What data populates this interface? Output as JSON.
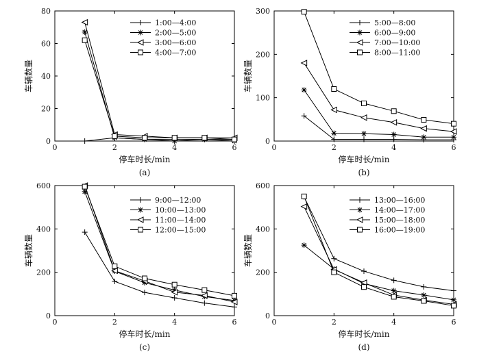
{
  "chart_data": [
    {
      "type": "line",
      "panel_label": "(a)",
      "xlabel": "停车时长/min",
      "ylabel": "车辆数量",
      "xlim": [
        0,
        6
      ],
      "ylim": [
        0,
        80
      ],
      "xticks": [
        0,
        2,
        4,
        6
      ],
      "yticks": [
        0,
        20,
        40,
        60,
        80
      ],
      "legend": "top-right",
      "x": [
        1,
        2,
        3,
        4,
        5,
        6
      ],
      "series": [
        {
          "name": "1:00—4:00",
          "marker": "plus",
          "values": [
            0,
            2,
            1,
            1,
            1,
            1
          ]
        },
        {
          "name": "2:00—5:00",
          "marker": "asterisk",
          "values": [
            67,
            2,
            1,
            0,
            1,
            0
          ]
        },
        {
          "name": "3:00—6:00",
          "marker": "triangle",
          "values": [
            73,
            4,
            3,
            2,
            2,
            2
          ]
        },
        {
          "name": "4:00—7:00",
          "marker": "square",
          "values": [
            62,
            3,
            2,
            2,
            2,
            1
          ]
        }
      ]
    },
    {
      "type": "line",
      "panel_label": "(b)",
      "xlabel": "停车时长/min",
      "ylabel": "车辆数量",
      "xlim": [
        0,
        6
      ],
      "ylim": [
        0,
        300
      ],
      "xticks": [
        0,
        2,
        4,
        6
      ],
      "yticks": [
        0,
        100,
        200,
        300
      ],
      "legend": "top-right",
      "x": [
        1,
        2,
        3,
        4,
        5,
        6
      ],
      "series": [
        {
          "name": "5:00—8:00",
          "marker": "plus",
          "values": [
            58,
            4,
            4,
            4,
            3,
            3
          ]
        },
        {
          "name": "6:00—9:00",
          "marker": "asterisk",
          "values": [
            118,
            18,
            17,
            15,
            9,
            9
          ]
        },
        {
          "name": "7:00—10:00",
          "marker": "triangle",
          "values": [
            180,
            72,
            54,
            43,
            29,
            22
          ]
        },
        {
          "name": "8:00—11:00",
          "marker": "square",
          "values": [
            298,
            120,
            87,
            69,
            49,
            40
          ]
        }
      ]
    },
    {
      "type": "line",
      "panel_label": "(c)",
      "xlabel": "停车时长/min",
      "ylabel": "车辆数量",
      "xlim": [
        0,
        6
      ],
      "ylim": [
        0,
        600
      ],
      "xticks": [
        0,
        2,
        4,
        6
      ],
      "yticks": [
        0,
        200,
        400,
        600
      ],
      "legend": "top-right",
      "x": [
        1,
        2,
        3,
        4,
        5,
        6
      ],
      "series": [
        {
          "name": "9:00—12:00",
          "marker": "plus",
          "values": [
            385,
            158,
            107,
            82,
            58,
            40
          ]
        },
        {
          "name": "10:00—13:00",
          "marker": "asterisk",
          "values": [
            572,
            205,
            152,
            118,
            88,
            70
          ]
        },
        {
          "name": "11:00—14:00",
          "marker": "triangle",
          "values": [
            600,
            207,
            160,
            108,
            93,
            63
          ]
        },
        {
          "name": "12:00—15:00",
          "marker": "square",
          "values": [
            595,
            228,
            172,
            143,
            118,
            92
          ]
        }
      ]
    },
    {
      "type": "line",
      "panel_label": "(d)",
      "xlabel": "停车时长/min",
      "ylabel": "车辆数量",
      "xlim": [
        0,
        6
      ],
      "ylim": [
        0,
        600
      ],
      "xticks": [
        0,
        2,
        4,
        6
      ],
      "yticks": [
        0,
        200,
        400,
        600
      ],
      "legend": "top-right",
      "x": [
        1,
        2,
        3,
        4,
        5,
        6
      ],
      "series": [
        {
          "name": "13:00—16:00",
          "marker": "plus",
          "values": [
            548,
            263,
            205,
            163,
            133,
            115
          ]
        },
        {
          "name": "14:00—17:00",
          "marker": "asterisk",
          "values": [
            325,
            215,
            148,
            115,
            95,
            73
          ]
        },
        {
          "name": "15:00—18:00",
          "marker": "triangle",
          "values": [
            503,
            213,
            152,
            95,
            72,
            52
          ]
        },
        {
          "name": "16:00—19:00",
          "marker": "square",
          "values": [
            550,
            200,
            132,
            87,
            68,
            46
          ]
        }
      ]
    }
  ]
}
